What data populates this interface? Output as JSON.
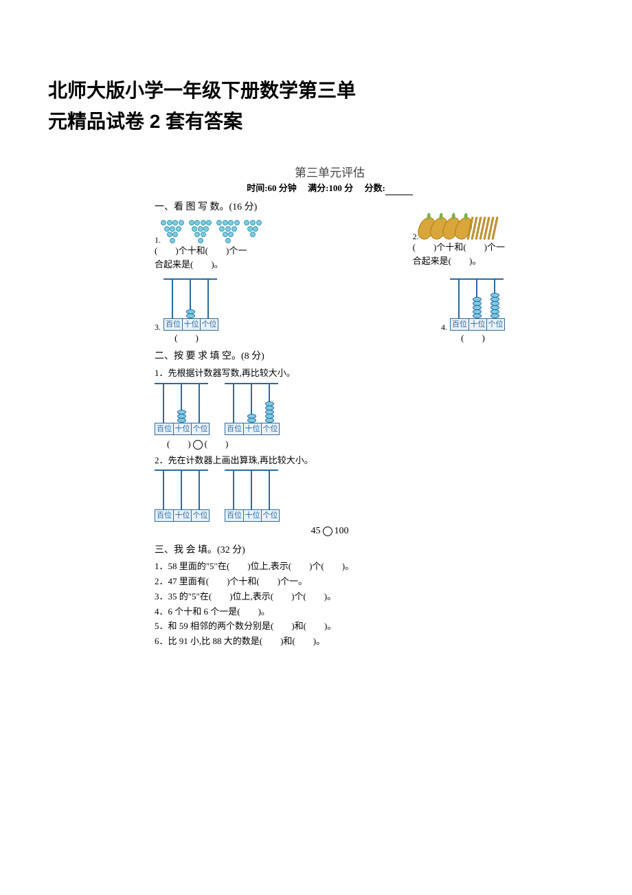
{
  "doc_title_line1": "北师大版小学一年级下册数学第三单",
  "doc_title_line2": "元精品试卷 2 套有答案",
  "exam": {
    "title": "第三单元评估",
    "meta_time": "时间:60 分钟",
    "meta_full": "满分:100 分",
    "meta_score": "分数:"
  },
  "s1": {
    "heading": "一、看 图 写 数。(16 分)",
    "q1_label": "1.",
    "q2_label": "2.",
    "tens_ones_line": "(　　)个十和(　　)个一",
    "combine_line": "合起来是(　　)。",
    "q3_label": "3.",
    "q4_label": "4.",
    "paren": "(　　)",
    "place_hundred": "百位",
    "place_ten": "十位",
    "place_one": "个位",
    "q1_pyramid_counts": [
      10,
      10,
      10,
      6
    ],
    "q2_corn_count": 4,
    "q2_stick_count": 7,
    "q3_beads": {
      "hundred": 0,
      "ten": 2,
      "one": 0
    },
    "q4_beads": {
      "hundred": 0,
      "ten": 5,
      "one": 6
    }
  },
  "s2": {
    "heading": "二、按 要 求 填 空。(8 分)",
    "sub1": "1．先根据计数器写数,再比较大小。",
    "sub2": "2．先在计数器上画出算珠,再比较大小。",
    "ab_a_beads": {
      "hundred": 0,
      "ten": 3,
      "one": 0
    },
    "ab_b_beads": {
      "hundred": 0,
      "ten": 2,
      "one": 5
    },
    "compare1_left": "(　　)",
    "compare1_right": "(　　)",
    "compare2": "45",
    "compare2_right": "100",
    "place_hundred": "百位",
    "place_ten": "十位",
    "place_one": "个位"
  },
  "s3": {
    "heading": "三、我 会 填。(32 分)",
    "q1": "1．58 里面的\"5\"在(　　)位上,表示(　　)个(　　)。",
    "q2": "2．47 里面有(　　)个十和(　　)个一。",
    "q3": "3．35 的\"5\"在(　　)位上,表示(　　)个(　　)。",
    "q4": "4．6 个十和 6 个一是(　　)。",
    "q5": "5．和 59 相邻的两个数分别是(　　)和(　　)。",
    "q6": "6．比 91 小,比 88 大的数是(　　)和(　　)。"
  },
  "colors": {
    "bead_fill": "#7fcbe0",
    "bead_border": "#2a6aa0",
    "corn_fill": "#d8a63a",
    "corn_border": "#b07c1a"
  }
}
